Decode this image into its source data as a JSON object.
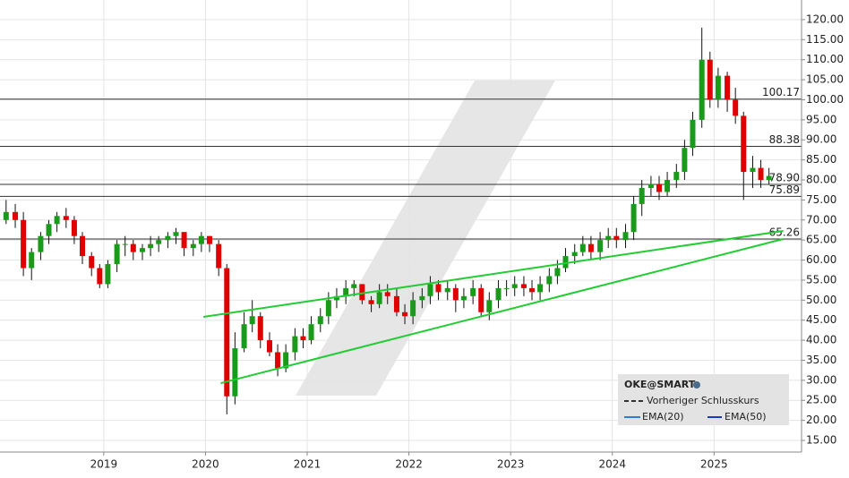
{
  "chart_data": {
    "type": "candlestick",
    "x": [
      2018.04,
      2018.13,
      2018.21,
      2018.29,
      2018.38,
      2018.46,
      2018.54,
      2018.63,
      2018.71,
      2018.79,
      2018.88,
      2018.96,
      2019.04,
      2019.13,
      2019.21,
      2019.29,
      2019.38,
      2019.46,
      2019.54,
      2019.63,
      2019.71,
      2019.79,
      2019.88,
      2019.96,
      2020.04,
      2020.13,
      2020.21,
      2020.29,
      2020.38,
      2020.46,
      2020.54,
      2020.63,
      2020.71,
      2020.79,
      2020.88,
      2020.96,
      2021.04,
      2021.13,
      2021.21,
      2021.29,
      2021.38,
      2021.46,
      2021.54,
      2021.63,
      2021.71,
      2021.79,
      2021.88,
      2021.96,
      2022.04,
      2022.13,
      2022.21,
      2022.29,
      2022.38,
      2022.46,
      2022.54,
      2022.63,
      2022.71,
      2022.79,
      2022.88,
      2022.96,
      2023.04,
      2023.13,
      2023.21,
      2023.29,
      2023.38,
      2023.46,
      2023.54,
      2023.63,
      2023.71,
      2023.79,
      2023.88,
      2023.96,
      2024.04,
      2024.13,
      2024.21,
      2024.29,
      2024.38,
      2024.46,
      2024.54,
      2024.63,
      2024.71,
      2024.79,
      2024.88,
      2024.96,
      2025.04,
      2025.13,
      2025.21,
      2025.29,
      2025.38,
      2025.46,
      2025.54
    ],
    "open": [
      70,
      72,
      70,
      58,
      62,
      66,
      69,
      71,
      70,
      66,
      61,
      58,
      54,
      59,
      64,
      64,
      62,
      63,
      64,
      65,
      66,
      67,
      63,
      64,
      66,
      64,
      58,
      26,
      38,
      44,
      46,
      40,
      37,
      33,
      37,
      41,
      40,
      44,
      46,
      50,
      51,
      53,
      54,
      50,
      49,
      52,
      51,
      47,
      46,
      50,
      51,
      54,
      52,
      53,
      50,
      51,
      53,
      47,
      50,
      53,
      53,
      54,
      53,
      52,
      54,
      56,
      58,
      61,
      62,
      64,
      62,
      65,
      66,
      65,
      67,
      74,
      78,
      79,
      77,
      80,
      82,
      88,
      95,
      110,
      100,
      106,
      100,
      96,
      82,
      83,
      80
    ],
    "high": [
      75,
      74,
      72,
      63,
      67,
      70,
      72,
      73,
      71,
      67,
      62,
      59,
      60,
      65,
      66,
      65,
      64,
      66,
      66,
      67,
      68,
      67,
      65,
      67,
      66,
      65,
      59,
      42,
      47,
      50,
      47,
      42,
      39,
      39,
      43,
      43,
      46,
      48,
      52,
      53,
      55,
      55,
      54,
      51,
      54,
      54,
      53,
      49,
      52,
      53,
      56,
      55,
      55,
      54,
      53,
      55,
      54,
      52,
      55,
      55,
      56,
      56,
      55,
      56,
      58,
      60,
      63,
      64,
      66,
      66,
      67,
      68,
      68,
      69,
      76,
      80,
      81,
      81,
      82,
      84,
      90,
      97,
      118,
      112,
      108,
      107,
      103,
      97,
      86,
      85,
      83
    ],
    "low": [
      69,
      68,
      56,
      55,
      60,
      64,
      67,
      68,
      64,
      59,
      56,
      53,
      53,
      57,
      61,
      60,
      60,
      61,
      62,
      63,
      64,
      61,
      61,
      62,
      62,
      56,
      21.5,
      24,
      37,
      42,
      38,
      36,
      31,
      32,
      35,
      38,
      39,
      42,
      44,
      48,
      49,
      51,
      49,
      47,
      48,
      49,
      46,
      44,
      44,
      48,
      49,
      50,
      50,
      47,
      48,
      49,
      46,
      45,
      48,
      51,
      51,
      51,
      50,
      50,
      52,
      54,
      57,
      59,
      61,
      60,
      60,
      63,
      63,
      63,
      65,
      71,
      76,
      75,
      76,
      78,
      80,
      86,
      93,
      98,
      98,
      97,
      94,
      75,
      78,
      78,
      79
    ],
    "close": [
      72,
      70,
      58,
      62,
      66,
      69,
      71,
      70,
      66,
      61,
      58,
      54,
      59,
      64,
      64,
      62,
      63,
      64,
      65,
      66,
      67,
      63,
      64,
      66,
      64,
      58,
      26,
      38,
      44,
      46,
      40,
      37,
      33,
      37,
      41,
      40,
      44,
      46,
      50,
      51,
      53,
      54,
      50,
      49,
      52,
      51,
      47,
      46,
      50,
      51,
      54,
      52,
      53,
      50,
      51,
      53,
      47,
      50,
      53,
      53,
      54,
      53,
      52,
      54,
      56,
      58,
      61,
      62,
      64,
      62,
      65,
      66,
      65,
      67,
      74,
      78,
      79,
      77,
      80,
      82,
      88,
      95,
      110,
      100,
      106,
      100,
      96,
      82,
      83,
      80,
      81
    ],
    "up_color": "#1a9a1a",
    "down_color": "#e00000",
    "xlim": [
      2017.98,
      2025.86
    ],
    "xticks": [
      2019,
      2020,
      2021,
      2022,
      2023,
      2024,
      2025
    ],
    "ylim": [
      12.1,
      124.9
    ],
    "yticks": [
      {
        "value": 15,
        "label": "15.00"
      },
      {
        "value": 20,
        "label": "20.00"
      },
      {
        "value": 25,
        "label": "25.00"
      },
      {
        "value": 30,
        "label": "30.00"
      },
      {
        "value": 35,
        "label": "35.00"
      },
      {
        "value": 40,
        "label": "40.00"
      },
      {
        "value": 45,
        "label": "45.00"
      },
      {
        "value": 50,
        "label": "50.00"
      },
      {
        "value": 55,
        "label": "55.00"
      },
      {
        "value": 60,
        "label": "60.00"
      },
      {
        "value": 65,
        "label": "65.00"
      },
      {
        "value": 70,
        "label": "70.00"
      },
      {
        "value": 75,
        "label": "75.00"
      },
      {
        "value": 80,
        "label": "80.00"
      },
      {
        "value": 85,
        "label": "85.00"
      },
      {
        "value": 90,
        "label": "90.00"
      },
      {
        "value": 95,
        "label": "95.00"
      },
      {
        "value": 100,
        "label": "100.00"
      },
      {
        "value": 105,
        "label": "105.00"
      },
      {
        "value": 110,
        "label": "110.00"
      },
      {
        "value": 115,
        "label": "115.00"
      },
      {
        "value": 120,
        "label": "120.00"
      }
    ],
    "grid": true,
    "levels": [
      100.17,
      88.38,
      {
        "value": 78.9,
        "label": "78.90"
      },
      75.89,
      65.26
    ],
    "trend_lines": [
      {
        "x": [
          2019.98,
          2025.68
        ],
        "y": [
          45.83,
          67.27
        ]
      },
      {
        "x": [
          2020.15,
          2025.68
        ],
        "y": [
          29.29,
          65.26
        ]
      }
    ],
    "trend_color": "#22cc33",
    "legend": {
      "title": "OKE@SMART",
      "entries": [
        "Vorheriger Schlusskurs",
        "EMA(20)",
        "EMA(50)"
      ]
    }
  }
}
